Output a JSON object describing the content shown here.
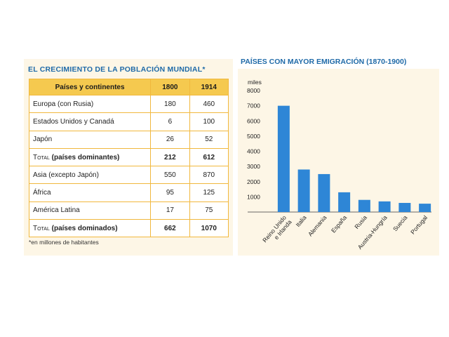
{
  "left": {
    "title": "EL CRECIMIENTO DE LA POBLACIÓN MUNDIAL*",
    "headers": [
      "Países y continentes",
      "1800",
      "1914"
    ],
    "rows": [
      {
        "label": "Europa (con Rusia)",
        "v1800": "180",
        "v1914": "460",
        "total": false
      },
      {
        "label": "Estados Unidos y Canadá",
        "v1800": "6",
        "v1914": "100",
        "total": false
      },
      {
        "label": "Japón",
        "v1800": "26",
        "v1914": "52",
        "total": false
      },
      {
        "label_prefix": "Total",
        "label": "(países dominantes)",
        "v1800": "212",
        "v1914": "612",
        "total": true
      },
      {
        "label": "Asia (excepto Japón)",
        "v1800": "550",
        "v1914": "870",
        "total": false
      },
      {
        "label": "África",
        "v1800": "95",
        "v1914": "125",
        "total": false
      },
      {
        "label": "América Latina",
        "v1800": "17",
        "v1914": "75",
        "total": false
      },
      {
        "label_prefix": "Total",
        "label": "(países dominados)",
        "v1800": "662",
        "v1914": "1070",
        "total": true
      }
    ],
    "footnote": "*en millones de habitantes"
  },
  "chart_data": {
    "type": "bar",
    "title": "PAÍSES CON MAYOR EMIGRACIÓN (1870-1900)",
    "ylabel": "miles",
    "ylim": [
      0,
      8000
    ],
    "yticks": [
      1000,
      2000,
      3000,
      4000,
      5000,
      6000,
      7000,
      8000
    ],
    "categories": [
      "Reino Unido e Irlanda",
      "Italia",
      "Alemania",
      "España",
      "Rusia",
      "Austria-Hungría",
      "Suecia",
      "Portugal"
    ],
    "category_lines": [
      [
        "Reino Unido",
        "e Irlanda"
      ],
      [
        "Italia"
      ],
      [
        "Alemania"
      ],
      [
        "España"
      ],
      [
        "Rusia"
      ],
      [
        "Austria-Hungría"
      ],
      [
        "Suecia"
      ],
      [
        "Portugal"
      ]
    ],
    "values": [
      7000,
      2800,
      2500,
      1300,
      800,
      700,
      600,
      550
    ],
    "bar_color": "#2e86d6",
    "grid": false
  }
}
